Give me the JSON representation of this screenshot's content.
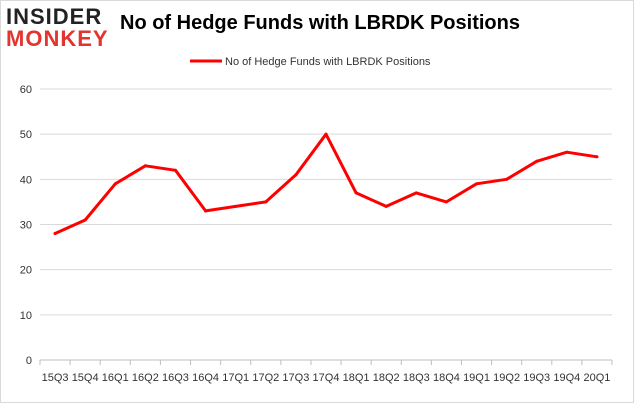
{
  "logo": {
    "line1": "INSIDER",
    "line2": "MONKEY"
  },
  "chart_data": {
    "type": "line",
    "title": "No of Hedge Funds with LBRDK Positions",
    "xlabel": "",
    "ylabel": "",
    "categories": [
      "15Q3",
      "15Q4",
      "16Q1",
      "16Q2",
      "16Q3",
      "16Q4",
      "17Q1",
      "17Q2",
      "17Q3",
      "17Q4",
      "18Q1",
      "18Q2",
      "18Q3",
      "18Q4",
      "19Q1",
      "19Q2",
      "19Q3",
      "19Q4",
      "20Q1"
    ],
    "series": [
      {
        "name": "No of Hedge Funds with LBRDK Positions",
        "color": "#ff0000",
        "values": [
          28,
          31,
          39,
          43,
          42,
          33,
          34,
          35,
          41,
          50,
          37,
          34,
          37,
          35,
          39,
          40,
          44,
          46,
          45
        ]
      }
    ],
    "ylim": [
      0,
      60
    ],
    "yticks": [
      0,
      10,
      20,
      30,
      40,
      50,
      60
    ],
    "grid": "horizontal",
    "legend_position": "top-center"
  }
}
